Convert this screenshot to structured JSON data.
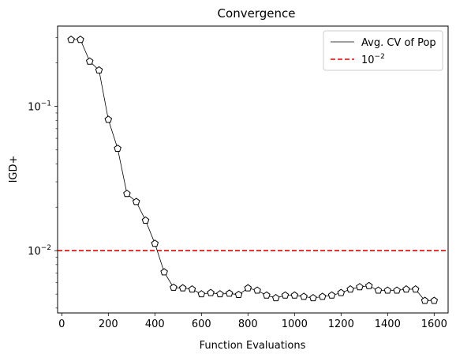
{
  "chart_data": {
    "type": "line",
    "title": "Convergence",
    "xlabel": "Function Evaluations",
    "ylabel": "IGD+",
    "yscale": "log",
    "xlim": [
      -18,
      1660
    ],
    "ylim": [
      0.0037,
      0.36
    ],
    "xticks": [
      0,
      200,
      400,
      600,
      800,
      1000,
      1200,
      1400,
      1600
    ],
    "yticks": [
      {
        "value": 0.01,
        "base": "10",
        "exp": "−2"
      },
      {
        "value": 0.1,
        "base": "10",
        "exp": "−1"
      }
    ],
    "legend_position": "top-right",
    "series": [
      {
        "name": "Avg. CV of Pop",
        "color": "#000000",
        "marker": "pentagon",
        "x": [
          40,
          80,
          120,
          160,
          200,
          240,
          280,
          320,
          360,
          400,
          440,
          480,
          520,
          560,
          600,
          640,
          680,
          720,
          760,
          800,
          840,
          880,
          920,
          960,
          1000,
          1040,
          1080,
          1120,
          1160,
          1200,
          1240,
          1280,
          1320,
          1360,
          1400,
          1440,
          1480,
          1520,
          1560,
          1600
        ],
        "y": [
          0.29,
          0.29,
          0.205,
          0.178,
          0.081,
          0.051,
          0.0248,
          0.0218,
          0.0162,
          0.0112,
          0.0071,
          0.00555,
          0.0055,
          0.0054,
          0.005,
          0.0051,
          0.005,
          0.00505,
          0.00495,
          0.0055,
          0.0053,
          0.0049,
          0.0047,
          0.0049,
          0.0049,
          0.0048,
          0.0047,
          0.0048,
          0.0049,
          0.0051,
          0.0054,
          0.0056,
          0.0057,
          0.0053,
          0.0053,
          0.0053,
          0.0054,
          0.0054,
          0.0045,
          0.0045
        ]
      }
    ],
    "hlines": [
      {
        "value": 0.01,
        "color": "#dd0000",
        "style": "dashed",
        "label_base": "10",
        "label_exp": "−2"
      }
    ]
  }
}
